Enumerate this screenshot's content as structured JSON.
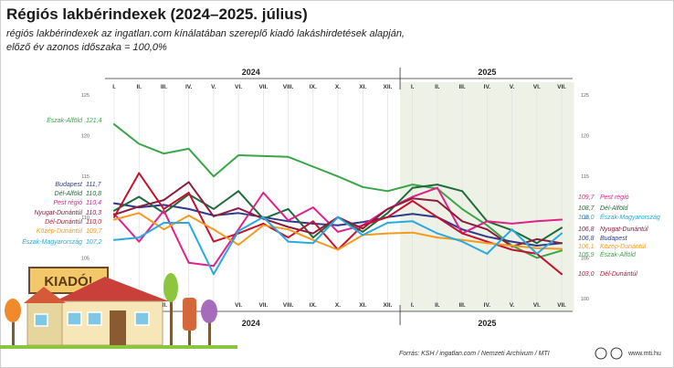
{
  "title": "Régiós lakbérindexek (2024–2025. július)",
  "subtitle_lines": [
    "régiós lakbérindexek az ingatlan.com kínálatában szereplő kiadó lakáshirdetések alapján,",
    "előző év azonos időszaka = 100,0%"
  ],
  "footer": {
    "source": "Forrás: KSH / ingatlan.com / Nemzeti Archívum / MTI",
    "site": "www.mti.hu"
  },
  "sign_text": "KIADÓ!",
  "colors": {
    "highlight_2025": "#eef2e6",
    "Észak-Alföld": "#3aa548",
    "Budapest": "#2e3a8c",
    "Dél-Alföld": "#1f6b3a",
    "Pest régió": "#e0218a",
    "Nyugat-Dunántúl": "#8a1f3c",
    "Dél-Dunántúl": "#c4122f",
    "Közép-Dunántúl": "#f39a1e",
    "Észak-Magyarország": "#2aa8e0"
  },
  "chart_data": {
    "type": "line",
    "year_labels": [
      "2024",
      "2025"
    ],
    "x": [
      "I.",
      "II.",
      "III.",
      "IV.",
      "V.",
      "VI.",
      "VII.",
      "VIII.",
      "IX.",
      "X.",
      "XI.",
      "XII.",
      "I.",
      "II.",
      "III.",
      "IV.",
      "V.",
      "VI.",
      "VII."
    ],
    "ylim": [
      100,
      125
    ],
    "yticks": [
      100,
      105,
      110,
      115,
      120,
      125
    ],
    "ytick_labels": [
      "100",
      "105",
      "110",
      "115",
      "120",
      "125"
    ],
    "highlight_start_index": 12,
    "grid": "vertical",
    "series": [
      {
        "name": "Észak-Alföld",
        "start_label": "121,4",
        "end_label": "105,9",
        "values": [
          121.4,
          119.0,
          117.8,
          118.4,
          115.0,
          117.6,
          117.5,
          117.4,
          116.2,
          115.0,
          113.7,
          113.2,
          114.0,
          113.5,
          111.0,
          109.0,
          106.5,
          105.0,
          105.9
        ]
      },
      {
        "name": "Budapest",
        "start_label": "111,7",
        "end_label": "106,8",
        "values": [
          111.7,
          111.2,
          111.5,
          111.0,
          110.2,
          110.5,
          110.0,
          109.5,
          109.2,
          109.0,
          109.4,
          110.0,
          110.4,
          110.0,
          108.5,
          107.6,
          107.0,
          106.5,
          106.8
        ]
      },
      {
        "name": "Dél-Alföld",
        "start_label": "110,8",
        "end_label": "108,7",
        "values": [
          110.8,
          112.5,
          110.5,
          112.8,
          111.0,
          113.2,
          109.8,
          111.0,
          107.5,
          110.0,
          108.2,
          110.5,
          113.6,
          114.0,
          113.2,
          109.5,
          108.4,
          106.8,
          108.7
        ]
      },
      {
        "name": "Pest régió",
        "start_label": "110,4",
        "end_label": "109,7",
        "values": [
          110.4,
          107.0,
          110.8,
          104.4,
          104.0,
          108.5,
          113.0,
          109.6,
          111.2,
          108.2,
          109.0,
          111.0,
          112.5,
          113.6,
          108.0,
          109.5,
          109.2,
          109.5,
          109.7
        ]
      },
      {
        "name": "Nyugat-Dunántúl",
        "start_label": "110,3",
        "end_label": "106,8",
        "values": [
          110.3,
          111.3,
          112.1,
          114.3,
          110.1,
          111.1,
          109.8,
          108.8,
          108.0,
          110.0,
          108.6,
          111.0,
          112.3,
          112.0,
          109.5,
          108.5,
          106.4,
          107.3,
          106.8
        ]
      },
      {
        "name": "Dél-Dunántúl",
        "start_label": "110,0",
        "end_label": "103,0",
        "values": [
          110.0,
          115.4,
          111.0,
          113.0,
          107.0,
          108.0,
          109.2,
          107.5,
          109.5,
          106.0,
          109.0,
          110.0,
          112.0,
          110.0,
          108.0,
          107.0,
          106.0,
          105.5,
          103.0
        ]
      },
      {
        "name": "Közép-Dunántúl",
        "start_label": "109,7",
        "end_label": "106,1",
        "values": [
          109.7,
          110.5,
          108.5,
          110.2,
          108.5,
          106.6,
          109.0,
          108.5,
          107.2,
          106.0,
          107.8,
          108.0,
          108.1,
          107.5,
          107.2,
          106.8,
          106.5,
          106.2,
          106.1
        ]
      },
      {
        "name": "Észak-Magyarország",
        "start_label": "107,2",
        "end_label": "108,0",
        "values": [
          107.2,
          107.5,
          109.3,
          109.3,
          103.0,
          108.3,
          110.0,
          107.0,
          106.8,
          110.0,
          107.8,
          109.3,
          109.5,
          108.0,
          107.0,
          105.5,
          108.5,
          105.5,
          108.0
        ]
      }
    ]
  }
}
